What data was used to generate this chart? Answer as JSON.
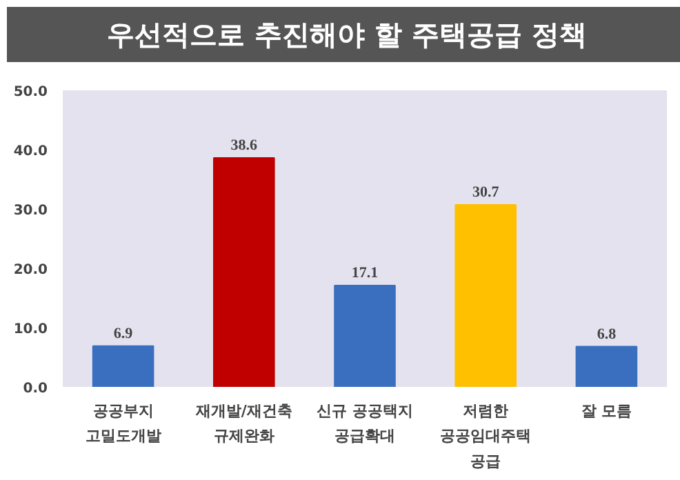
{
  "chart_data": {
    "type": "bar",
    "title": "우선적으로 추진해야 할 주택공급 정책",
    "categories": [
      "공공부지\n고밀도개발",
      "재개발/재건축\n규제완화",
      "신규 공공택지\n공급확대",
      "저렴한\n공공임대주택\n공급",
      "잘 모름"
    ],
    "values": [
      6.9,
      38.6,
      17.1,
      30.7,
      6.8
    ],
    "colors": [
      "#3a6fc0",
      "#c00000",
      "#3a6fc0",
      "#ffc000",
      "#3a6fc0"
    ],
    "ylim": [
      0,
      50
    ],
    "yticks": [
      {
        "value": 0,
        "label": "0.0"
      },
      {
        "value": 10,
        "label": "10.0"
      },
      {
        "value": 20,
        "label": "20.0"
      },
      {
        "value": 30,
        "label": "30.0"
      },
      {
        "value": 40,
        "label": "40.0"
      },
      {
        "value": 50,
        "label": "50.0"
      }
    ],
    "data_labels": true,
    "grid": false
  }
}
